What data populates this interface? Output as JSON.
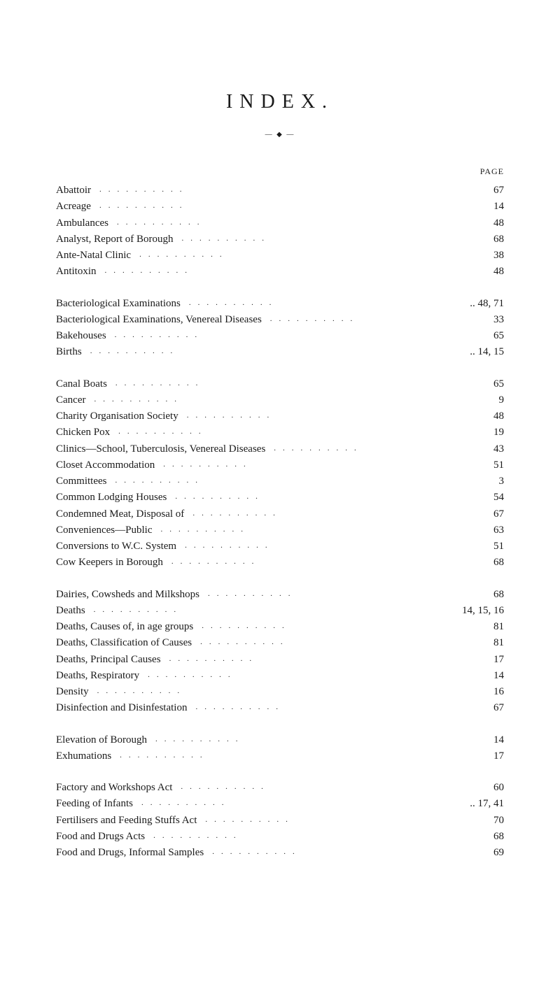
{
  "title": "INDEX.",
  "separator": "— ◆ —",
  "page_header": "PAGE",
  "dot_fill": "..........",
  "sections": [
    {
      "entries": [
        {
          "label": "Abattoir",
          "page": "67"
        },
        {
          "label": "Acreage",
          "page": "14"
        },
        {
          "label": "Ambulances",
          "page": "48"
        },
        {
          "label": "Analyst, Report of Borough",
          "page": "68"
        },
        {
          "label": "Ante-Natal Clinic",
          "page": "38"
        },
        {
          "label": "Antitoxin",
          "page": "48"
        }
      ]
    },
    {
      "entries": [
        {
          "label": "Bacteriological Examinations",
          "page": ".. 48, 71"
        },
        {
          "label": "Bacteriological Examinations, Venereal Diseases",
          "page": "33"
        },
        {
          "label": "Bakehouses",
          "page": "65"
        },
        {
          "label": "Births",
          "page": ".. 14, 15"
        }
      ]
    },
    {
      "entries": [
        {
          "label": "Canal Boats",
          "page": "65"
        },
        {
          "label": "Cancer",
          "page": "9"
        },
        {
          "label": "Charity Organisation Society",
          "page": "48"
        },
        {
          "label": "Chicken Pox",
          "page": "19"
        },
        {
          "label": "Clinics—School, Tuberculosis, Venereal Diseases",
          "page": "43"
        },
        {
          "label": "Closet Accommodation",
          "page": "51"
        },
        {
          "label": "Committees",
          "page": "3"
        },
        {
          "label": "Common Lodging Houses",
          "page": "54"
        },
        {
          "label": "Condemned Meat, Disposal of",
          "page": "67"
        },
        {
          "label": "Conveniences—Public",
          "page": "63"
        },
        {
          "label": "Conversions to W.C. System",
          "page": "51"
        },
        {
          "label": "Cow Keepers in Borough",
          "page": "68"
        }
      ]
    },
    {
      "entries": [
        {
          "label": "Dairies, Cowsheds and Milkshops",
          "page": "68"
        },
        {
          "label": "Deaths",
          "page": "14, 15, 16"
        },
        {
          "label": "Deaths, Causes of, in age groups",
          "page": "81"
        },
        {
          "label": "Deaths, Classification of Causes",
          "page": "81"
        },
        {
          "label": "Deaths, Principal Causes",
          "page": "17"
        },
        {
          "label": "Deaths, Respiratory",
          "page": "14"
        },
        {
          "label": "Density",
          "page": "16"
        },
        {
          "label": "Disinfection and Disinfestation",
          "page": "67"
        }
      ]
    },
    {
      "entries": [
        {
          "label": "Elevation of Borough",
          "page": "14"
        },
        {
          "label": "Exhumations",
          "page": "17"
        }
      ]
    },
    {
      "entries": [
        {
          "label": "Factory and Workshops Act",
          "page": "60"
        },
        {
          "label": "Feeding of Infants",
          "page": ".. 17, 41"
        },
        {
          "label": "Fertilisers and Feeding Stuffs Act",
          "page": "70"
        },
        {
          "label": "Food and Drugs Acts",
          "page": "68"
        },
        {
          "label": "Food and Drugs, Informal Samples",
          "page": "69"
        }
      ]
    }
  ]
}
